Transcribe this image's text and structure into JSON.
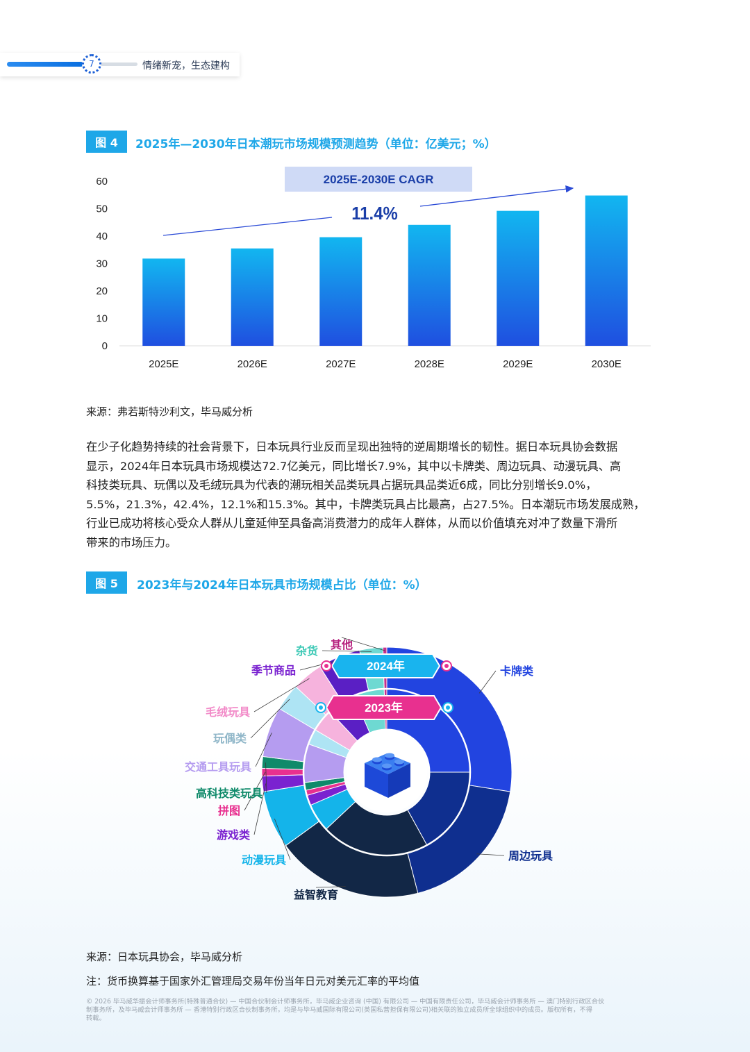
{
  "header": {
    "page_number": "7",
    "title": "情绪新宠，生态建构"
  },
  "figure4": {
    "label": "图 4",
    "title": "2025年—2030年日本潮玩市场规模预测趋势（单位：亿美元；%）",
    "source": "来源：弗若斯特沙利文，毕马威分析"
  },
  "chart_data": [
    {
      "type": "bar",
      "categories": [
        "2025E",
        "2026E",
        "2027E",
        "2028E",
        "2029E",
        "2030E"
      ],
      "values": [
        31.8,
        35.5,
        39.6,
        44.1,
        49.2,
        54.8
      ],
      "yticks": [
        0,
        10,
        20,
        30,
        40,
        50,
        60
      ],
      "ylim": [
        0,
        60
      ],
      "grid": false,
      "annotations": {
        "cagr_label": "2025E-2030E CAGR",
        "cagr_value": "11.4%"
      },
      "colors": {
        "bar_top": "#12b6f0",
        "bar_bottom": "#1f4fe0",
        "annotation_box": "#cfdaf6",
        "annotation_text": "#1a3ea8"
      }
    },
    {
      "type": "pie",
      "subtype": "nested-donut",
      "categories": [
        "卡牌类",
        "周边玩具",
        "益智教育",
        "动漫玩具",
        "游戏类",
        "拼图",
        "高科技类玩具",
        "交通工具玩具",
        "玩偶类",
        "毛绒玩具",
        "季节商品",
        "杂货",
        "其他"
      ],
      "series": [
        {
          "name": "2024年",
          "values": [
            27.5,
            18.5,
            19.0,
            7.5,
            2.0,
            1.0,
            1.5,
            6.5,
            3.5,
            4.0,
            5.5,
            3.0,
            0.5
          ]
        },
        {
          "name": "2023年",
          "values": [
            25.0,
            17.0,
            21.0,
            5.5,
            2.0,
            1.0,
            1.5,
            7.5,
            3.0,
            4.5,
            5.5,
            6.0,
            0.5
          ]
        }
      ],
      "colors": [
        "#2244e0",
        "#0f2f8f",
        "#122746",
        "#14b4ea",
        "#7a22d0",
        "#e8308f",
        "#0f8a6a",
        "#b59cf0",
        "#aee4f4",
        "#f6b3dd",
        "#5a1fc4",
        "#6ed9d2",
        "#c4308c"
      ],
      "label_colors": [
        "#2244e0",
        "#0f2f8f",
        "#122746",
        "#14b4ea",
        "#7a22d0",
        "#e8308f",
        "#0f8a6a",
        "#b59cf0",
        "#8fb6c8",
        "#f28ac8",
        "#7a22d0",
        "#3ec9b6",
        "#b51c7c"
      ]
    }
  ],
  "figure5": {
    "label": "图 5",
    "title": "2023年与2024年日本玩具市场规模占比（单位：%）",
    "source": "来源：日本玩具协会，毕马威分析",
    "note": "注：货币换算基于国家外汇管理局交易年份当年日元对美元汇率的平均值",
    "badge_outer": "2024年",
    "badge_inner": "2023年"
  },
  "paragraph": [
    "在少子化趋势持续的社会背景下，日本玩具行业反而呈现出独特的逆周期增长的韧性。据日本玩具协会数据",
    "显示，2024年日本玩具市场规模达72.7亿美元，同比增长7.9%，其中以卡牌类、周边玩具、动漫玩具、高",
    "科技类玩具、玩偶以及毛绒玩具为代表的潮玩相关品类玩具占据玩具品类近6成，同比分别增长9.0%，",
    "5.5%，21.3%，42.4%，12.1%和15.3%。其中，卡牌类玩具占比最高，占27.5%。日本潮玩市场发展成熟，",
    "行业已成功将核心受众人群从儿童延伸至具备高消费潜力的成年人群体，从而以价值填充对冲了数量下滑所",
    "带来的市场压力。"
  ],
  "footer": [
    "© 2026 毕马威华振会计师事务所(特殊普通合伙) — 中国合伙制会计师事务所，毕马威企业咨询 (中国) 有限公司 — 中国有限责任公司，毕马威会计师事务所 — 澳门特别行政区合伙",
    "制事务所，及毕马威会计师事务所 — 香港特别行政区合伙制事务所，均是与毕马威国际有限公司(英国私营担保有限公司)相关联的独立成员所全球组织中的成员。版权所有，不得",
    "转载。"
  ]
}
